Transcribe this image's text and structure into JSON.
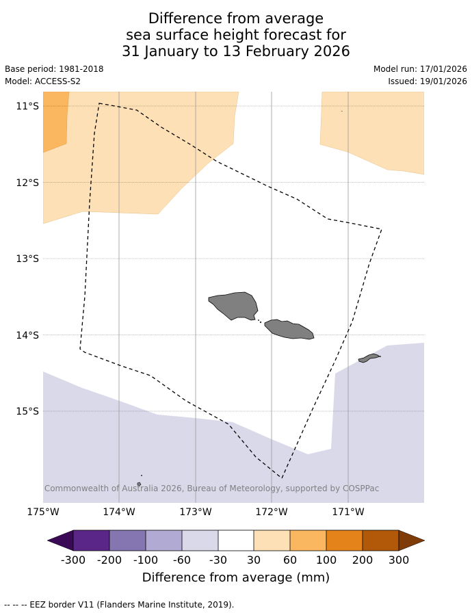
{
  "title": {
    "line1": "Difference from average",
    "line2": "sea surface height forecast for",
    "line3": "31 January to 13 February 2026"
  },
  "meta": {
    "base_period": "Base period: 1981-2018",
    "model": "Model: ACCESS-S2",
    "model_run": "Model run: 17/01/2026",
    "issued": "Issued: 19/01/2026"
  },
  "map": {
    "lat_labels": [
      "11°S",
      "12°S",
      "13°S",
      "14°S",
      "15°S"
    ],
    "lon_labels": [
      "175°W",
      "174°W",
      "173°W",
      "172°W",
      "171°W"
    ],
    "copyright": "© Commonwealth of Australia 2026, Bureau of Meteorology, supported by COSPPac",
    "colors": {
      "land": "#808080",
      "ocean": "#ffffff",
      "pale_orange": "#fde0b5",
      "orange": "#fbb660",
      "pale_lavender": "#d9d9ea"
    }
  },
  "colorbar": {
    "title": "Difference from average (mm)",
    "ticks": [
      "-300",
      "-200",
      "-100",
      "-60",
      "-30",
      "30",
      "60",
      "100",
      "200",
      "300"
    ],
    "colors": [
      "#3b0a56",
      "#5a2687",
      "#8575b0",
      "#b1aad2",
      "#d9d9ea",
      "#ffffff",
      "#fde0b5",
      "#fbb660",
      "#e38319",
      "#b15909",
      "#7f3b08"
    ]
  },
  "footnote": "--  --  -- EEZ border V11 (Flanders Marine Institute, 2019)."
}
